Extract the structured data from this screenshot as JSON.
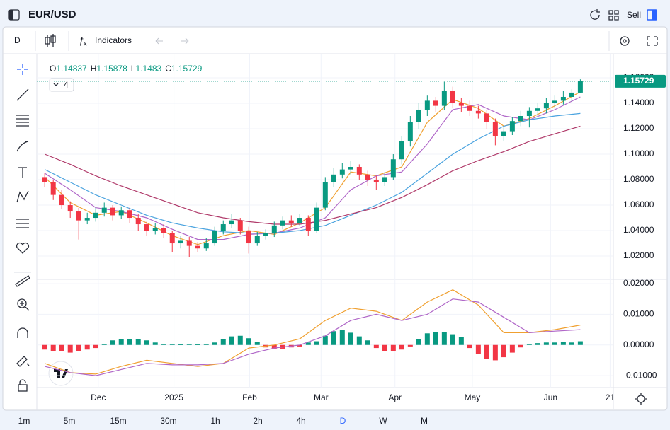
{
  "ui": {
    "symbol": "EUR/USD",
    "sell": "Sell",
    "interval": "D",
    "indicators": "Indicators",
    "indicator_count": 4,
    "timeframes": [
      "1m",
      "5m",
      "15m",
      "30m",
      "1h",
      "2h",
      "4h",
      "D",
      "W",
      "M"
    ],
    "active_timeframe": 7
  },
  "chart_data": {
    "type": "candlestick",
    "up_color": "#089981",
    "down_color": "#f23645",
    "grid": true,
    "ohlc": [
      {
        "label": "O",
        "value": 1.14837
      },
      {
        "label": "H",
        "value": 1.15878
      },
      {
        "label": "L",
        "value": 1.1483
      },
      {
        "label": "C",
        "value": 1.15729
      }
    ],
    "last_price": 1.15729,
    "last_price_color": "#089981",
    "xlim": [
      -0.1,
      66.8
    ],
    "xticks": [
      {
        "value": 6.3,
        "label": "Dec"
      },
      {
        "value": 15.2,
        "label": "2025"
      },
      {
        "value": 24.1,
        "label": "Feb"
      },
      {
        "value": 32.5,
        "label": "Mar"
      },
      {
        "value": 41.2,
        "label": "Apr"
      },
      {
        "value": 50.3,
        "label": "May"
      },
      {
        "value": 59.5,
        "label": "Jun"
      },
      {
        "value": 66.5,
        "label": "21"
      }
    ],
    "ylim": [
      1.0017,
      1.1611
    ],
    "yticks": [
      {
        "value": 1.02,
        "label": "1.02000"
      },
      {
        "value": 1.04,
        "label": "1.04000"
      },
      {
        "value": 1.06,
        "label": "1.06000"
      },
      {
        "value": 1.08,
        "label": "1.08000"
      },
      {
        "value": 1.1,
        "label": "1.10000"
      },
      {
        "value": 1.12,
        "label": "1.12000"
      },
      {
        "value": 1.14,
        "label": "1.14000"
      },
      {
        "value": 1.16,
        "label": "1.16000"
      }
    ],
    "candles": [
      [
        1.082,
        1.085,
        1.074,
        1.078
      ],
      [
        1.078,
        1.08,
        1.064,
        1.068
      ],
      [
        1.068,
        1.072,
        1.057,
        1.06
      ],
      [
        1.06,
        1.063,
        1.05,
        1.055
      ],
      [
        1.055,
        1.058,
        1.033,
        1.048
      ],
      [
        1.048,
        1.054,
        1.045,
        1.05
      ],
      [
        1.05,
        1.058,
        1.047,
        1.054
      ],
      [
        1.054,
        1.062,
        1.051,
        1.058
      ],
      [
        1.058,
        1.06,
        1.048,
        1.052
      ],
      [
        1.052,
        1.059,
        1.049,
        1.056
      ],
      [
        1.056,
        1.058,
        1.046,
        1.05
      ],
      [
        1.05,
        1.053,
        1.04,
        1.045
      ],
      [
        1.045,
        1.047,
        1.036,
        1.04
      ],
      [
        1.04,
        1.046,
        1.037,
        1.042
      ],
      [
        1.042,
        1.045,
        1.034,
        1.038
      ],
      [
        1.038,
        1.04,
        1.023,
        1.03
      ],
      [
        1.03,
        1.036,
        1.026,
        1.032
      ],
      [
        1.032,
        1.035,
        1.019,
        1.028
      ],
      [
        1.028,
        1.031,
        1.023,
        1.026
      ],
      [
        1.026,
        1.034,
        1.024,
        1.03
      ],
      [
        1.03,
        1.043,
        1.028,
        1.04
      ],
      [
        1.04,
        1.048,
        1.037,
        1.045
      ],
      [
        1.045,
        1.053,
        1.042,
        1.048
      ],
      [
        1.048,
        1.05,
        1.037,
        1.04
      ],
      [
        1.04,
        1.043,
        1.022,
        1.03
      ],
      [
        1.03,
        1.039,
        1.028,
        1.036
      ],
      [
        1.036,
        1.041,
        1.033,
        1.038
      ],
      [
        1.038,
        1.047,
        1.035,
        1.044
      ],
      [
        1.044,
        1.051,
        1.041,
        1.048
      ],
      [
        1.048,
        1.052,
        1.043,
        1.046
      ],
      [
        1.046,
        1.053,
        1.044,
        1.05
      ],
      [
        1.05,
        1.052,
        1.036,
        1.04
      ],
      [
        1.04,
        1.062,
        1.038,
        1.058
      ],
      [
        1.058,
        1.082,
        1.056,
        1.078
      ],
      [
        1.078,
        1.089,
        1.074,
        1.084
      ],
      [
        1.084,
        1.093,
        1.081,
        1.088
      ],
      [
        1.088,
        1.095,
        1.084,
        1.09
      ],
      [
        1.09,
        1.092,
        1.08,
        1.084
      ],
      [
        1.084,
        1.087,
        1.075,
        1.08
      ],
      [
        1.08,
        1.083,
        1.072,
        1.078
      ],
      [
        1.078,
        1.086,
        1.075,
        1.082
      ],
      [
        1.082,
        1.1,
        1.08,
        1.096
      ],
      [
        1.096,
        1.114,
        1.092,
        1.11
      ],
      [
        1.11,
        1.13,
        1.106,
        1.125
      ],
      [
        1.125,
        1.14,
        1.12,
        1.135
      ],
      [
        1.135,
        1.146,
        1.13,
        1.142
      ],
      [
        1.142,
        1.145,
        1.133,
        1.138
      ],
      [
        1.138,
        1.157,
        1.135,
        1.15
      ],
      [
        1.15,
        1.153,
        1.136,
        1.14
      ],
      [
        1.14,
        1.144,
        1.133,
        1.138
      ],
      [
        1.138,
        1.142,
        1.13,
        1.134
      ],
      [
        1.134,
        1.138,
        1.128,
        1.132
      ],
      [
        1.132,
        1.135,
        1.12,
        1.125
      ],
      [
        1.125,
        1.128,
        1.107,
        1.114
      ],
      [
        1.114,
        1.121,
        1.11,
        1.118
      ],
      [
        1.118,
        1.129,
        1.115,
        1.126
      ],
      [
        1.126,
        1.134,
        1.122,
        1.13
      ],
      [
        1.13,
        1.137,
        1.121,
        1.134
      ],
      [
        1.134,
        1.14,
        1.13,
        1.136
      ],
      [
        1.136,
        1.144,
        1.132,
        1.14
      ],
      [
        1.14,
        1.146,
        1.136,
        1.142
      ],
      [
        1.142,
        1.15,
        1.139,
        1.145
      ],
      [
        1.145,
        1.151,
        1.141,
        1.14837
      ],
      [
        1.14837,
        1.15878,
        1.1483,
        1.15729
      ]
    ],
    "line_x": [
      0,
      3,
      6,
      9,
      12,
      15,
      18,
      21,
      24,
      27,
      30,
      33,
      36,
      39,
      42,
      45,
      48,
      51,
      54,
      57,
      60,
      63
    ],
    "series": [
      {
        "color": "#f0a030",
        "values": [
          1.082,
          1.062,
          1.052,
          1.055,
          1.046,
          1.036,
          1.029,
          1.036,
          1.04,
          1.037,
          1.046,
          1.058,
          1.086,
          1.083,
          1.09,
          1.125,
          1.143,
          1.136,
          1.122,
          1.128,
          1.138,
          1.149
        ]
      },
      {
        "color": "#b067c8",
        "values": [
          1.085,
          1.072,
          1.058,
          1.055,
          1.05,
          1.041,
          1.033,
          1.033,
          1.037,
          1.038,
          1.042,
          1.05,
          1.072,
          1.083,
          1.086,
          1.108,
          1.135,
          1.139,
          1.13,
          1.127,
          1.135,
          1.145
        ]
      },
      {
        "color": "#4aa3df",
        "values": [
          1.088,
          1.078,
          1.068,
          1.06,
          1.052,
          1.046,
          1.042,
          1.039,
          1.038,
          1.038,
          1.04,
          1.044,
          1.052,
          1.06,
          1.07,
          1.085,
          1.1,
          1.112,
          1.122,
          1.127,
          1.13,
          1.132
        ]
      },
      {
        "color": "#b03a6a",
        "values": [
          1.1,
          1.092,
          1.083,
          1.075,
          1.068,
          1.061,
          1.054,
          1.05,
          1.047,
          1.045,
          1.045,
          1.048,
          1.053,
          1.058,
          1.066,
          1.076,
          1.087,
          1.095,
          1.102,
          1.11,
          1.116,
          1.122
        ]
      }
    ],
    "macd": {
      "ylim": [
        -0.0139,
        0.0214
      ],
      "yticks": [
        {
          "value": 0.02,
          "label": "0.02000"
        },
        {
          "value": 0.01,
          "label": "0.01000"
        },
        {
          "value": 0,
          "label": "0.00000"
        },
        {
          "value": -0.01,
          "label": "-0.01000"
        }
      ],
      "hist_up_color": "#089981",
      "hist_down_color": "#f23645",
      "histogram": [
        -0.0015,
        -0.002,
        -0.002,
        -0.0025,
        -0.002,
        -0.0015,
        -0.001,
        0.0003,
        0.0015,
        0.0018,
        0.002,
        0.0018,
        0.0015,
        0.0008,
        0.0004,
        0.0003,
        0.0002,
        0.0003,
        0.0002,
        0.0003,
        0.0008,
        0.002,
        0.0028,
        0.003,
        0.0022,
        0.001,
        -0.0008,
        -0.0012,
        -0.0012,
        -0.0008,
        -0.0005,
        0.0008,
        0.0012,
        0.003,
        0.0045,
        0.0048,
        0.004,
        0.0028,
        0.0015,
        -0.001,
        -0.002,
        -0.002,
        -0.0015,
        -0.0005,
        0.002,
        0.0038,
        0.0042,
        0.0042,
        0.0035,
        0.0025,
        -0.001,
        -0.003,
        -0.0045,
        -0.005,
        -0.004,
        -0.0025,
        -0.0008,
        0.0003,
        0.0006,
        0.0008,
        0.0008,
        0.0009,
        0.0008,
        0.0012
      ],
      "series": [
        {
          "color": "#f0a030",
          "values": [
            -0.006,
            -0.009,
            -0.0095,
            -0.007,
            -0.005,
            -0.006,
            -0.007,
            -0.006,
            -0.001,
            0,
            0.002,
            0.008,
            0.012,
            0.011,
            0.008,
            0.014,
            0.018,
            0.013,
            0.004,
            0.004,
            0.005,
            0.0065
          ]
        },
        {
          "color": "#b067c8",
          "values": [
            -0.007,
            -0.009,
            -0.01,
            -0.008,
            -0.006,
            -0.0065,
            -0.0065,
            -0.006,
            -0.003,
            -0.001,
            0,
            0.003,
            0.008,
            0.01,
            0.008,
            0.01,
            0.015,
            0.014,
            0.009,
            0.004,
            0.0045,
            0.005
          ]
        }
      ]
    }
  }
}
